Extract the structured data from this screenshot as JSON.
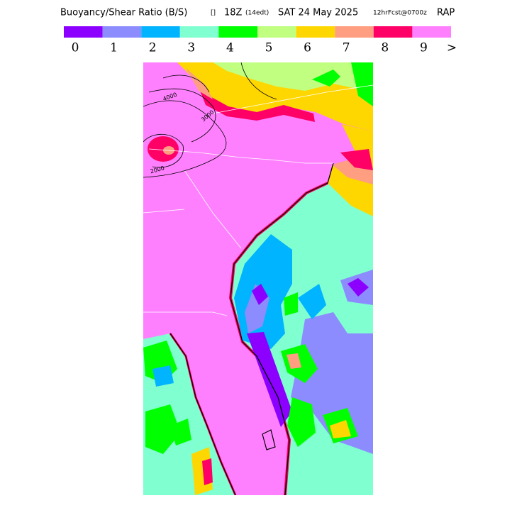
{
  "header": {
    "title_parts": [
      "Buoyancy/Shear Ratio (B/S)",
      "[]",
      "18Z",
      "(14edt)",
      "SAT 24 May 2025",
      "12hrFcst@0700z",
      "RAP"
    ]
  },
  "legend": {
    "items": [
      {
        "label": "0",
        "color": "#8c00ff"
      },
      {
        "label": "1",
        "color": "#8c8cff"
      },
      {
        "label": "2",
        "color": "#00b4ff"
      },
      {
        "label": "3",
        "color": "#80ffd0"
      },
      {
        "label": "4",
        "color": "#00ff00"
      },
      {
        "label": "5",
        "color": "#c0ff80"
      },
      {
        "label": "6",
        "color": "#ffd700"
      },
      {
        "label": "7",
        "color": "#ff9e80"
      },
      {
        "label": "8",
        "color": "#ff0066"
      },
      {
        "label": "9",
        "color": "#ff80ff"
      }
    ],
    "overflow_label": ">"
  },
  "contour_labels": [
    "2000",
    "3000",
    "4000"
  ]
}
